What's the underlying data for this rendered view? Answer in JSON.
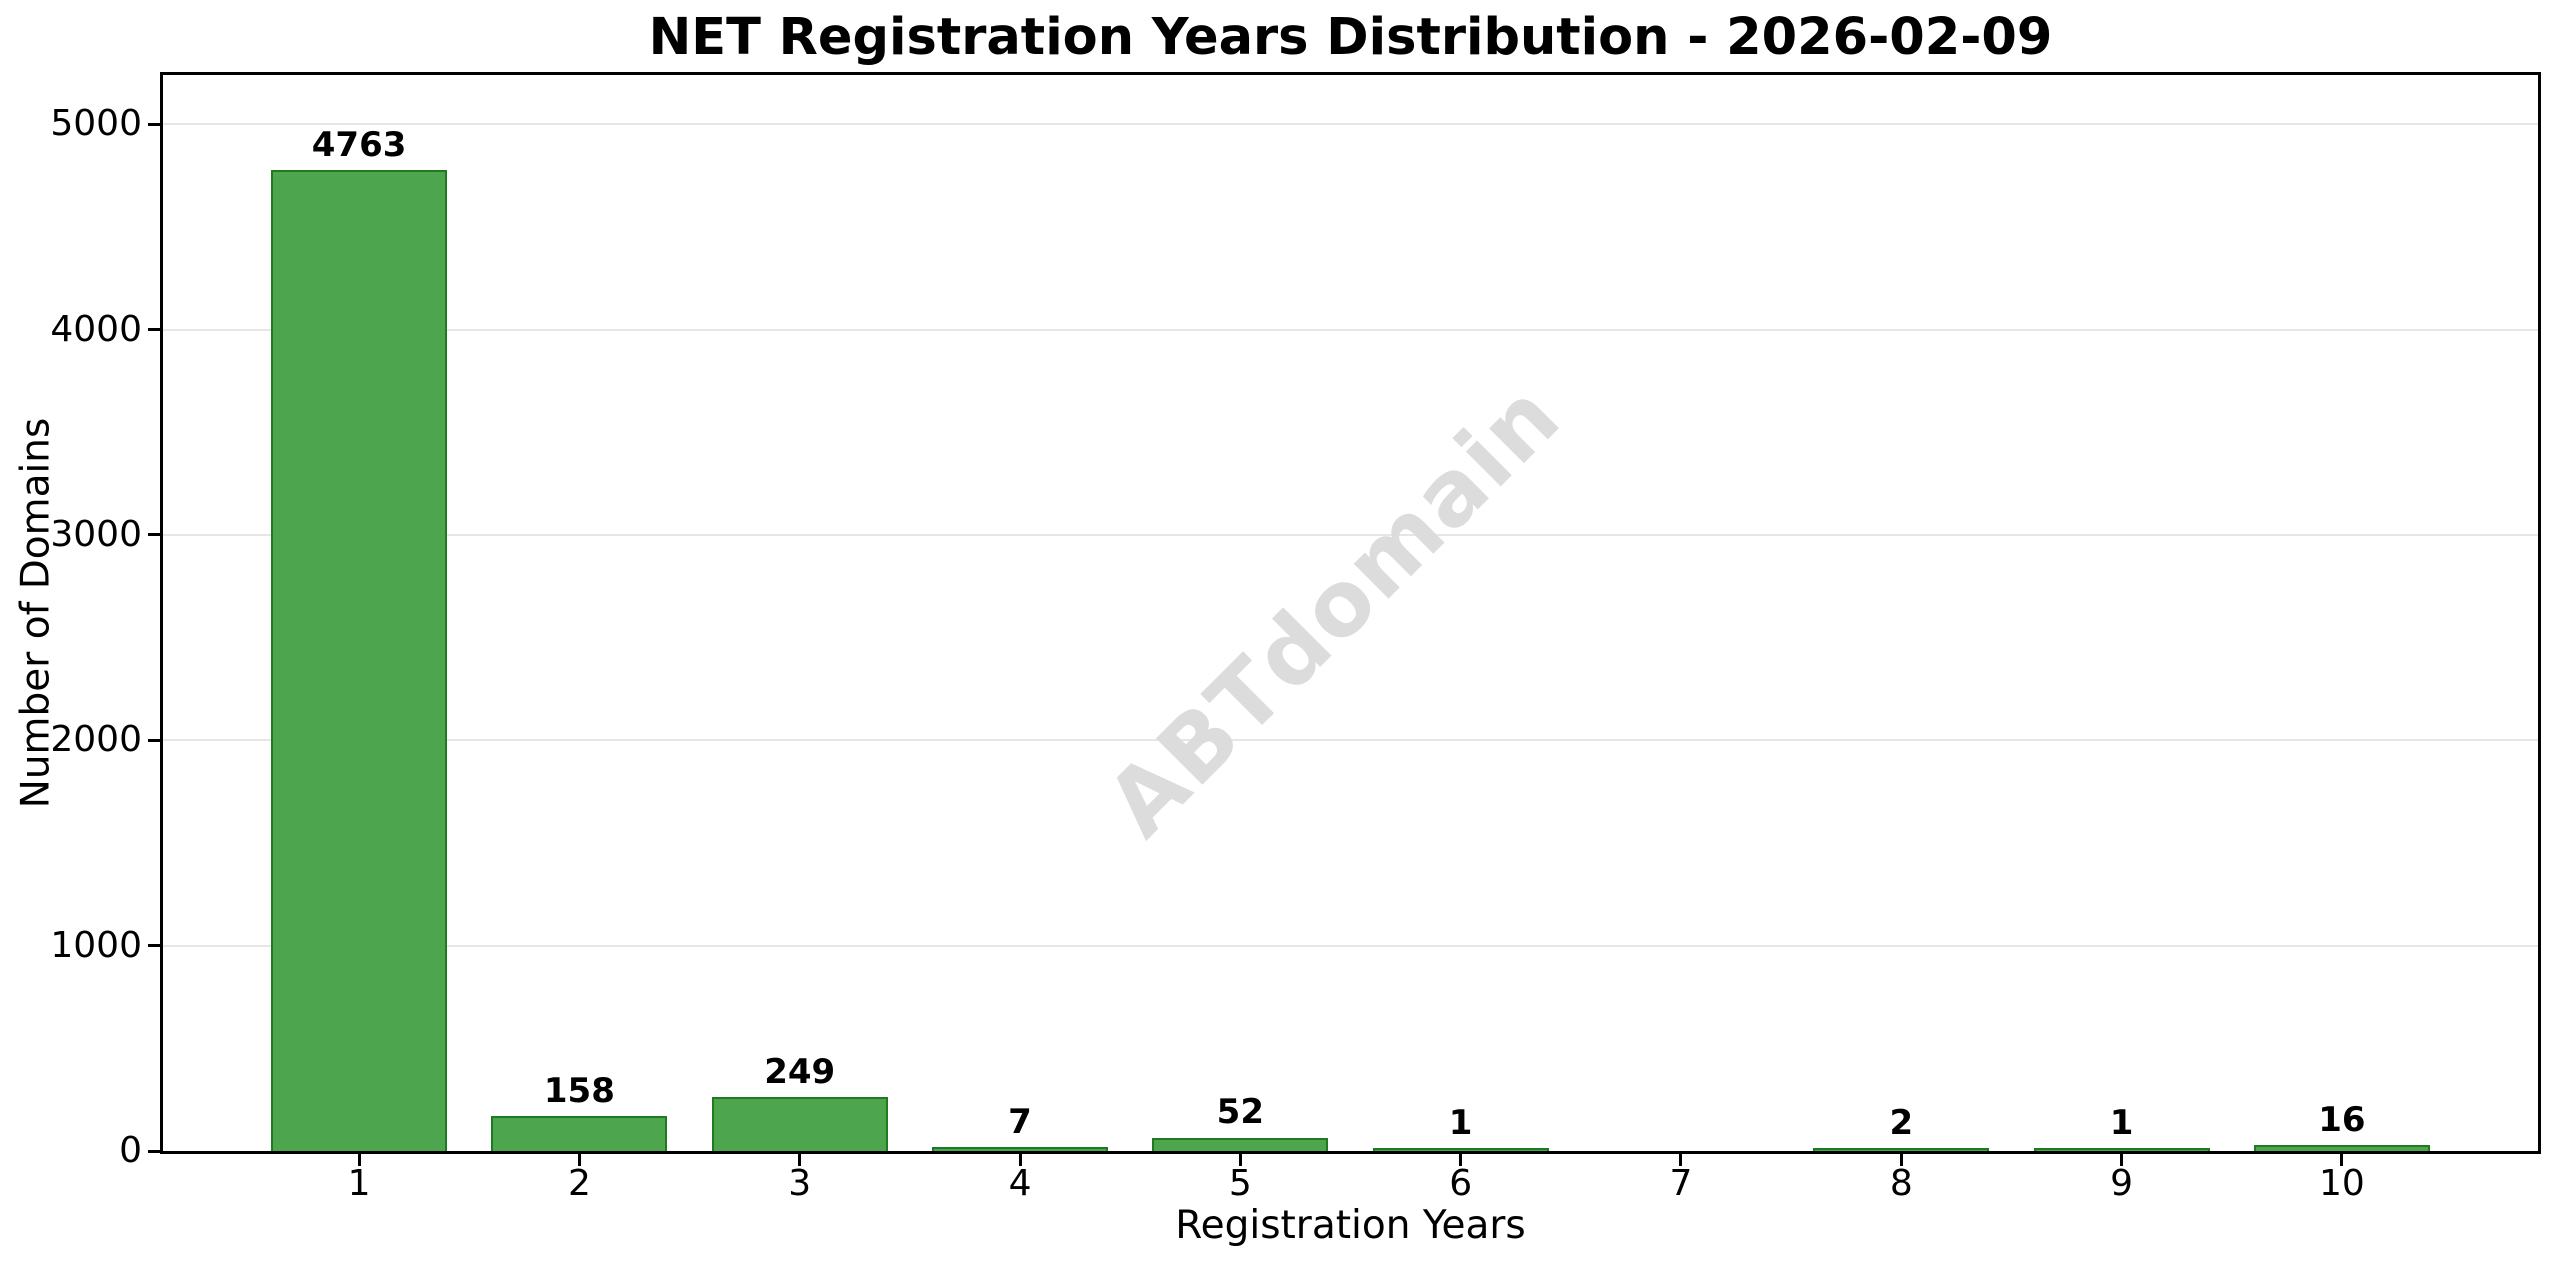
{
  "chart_data": {
    "type": "bar",
    "title": "NET Registration Years Distribution - 2026-02-09",
    "xlabel": "Registration Years",
    "ylabel": "Number of Domains",
    "categories": [
      "1",
      "2",
      "3",
      "4",
      "5",
      "6",
      "7",
      "8",
      "9",
      "10"
    ],
    "values": [
      4763,
      158,
      249,
      7,
      52,
      1,
      0,
      2,
      1,
      16
    ],
    "bar_value_labels": [
      "4763",
      "158",
      "249",
      "7",
      "52",
      "1",
      "",
      "2",
      "1",
      "16"
    ],
    "yticks": [
      0,
      1000,
      2000,
      3000,
      4000,
      5000
    ],
    "ytick_labels": [
      "0",
      "1000",
      "2000",
      "3000",
      "4000",
      "5000"
    ],
    "ylim": [
      0,
      5240
    ],
    "grid": "horizontal",
    "legend": "none",
    "watermark": "ABTdomain",
    "colors": {
      "bar_fill": "#4da64d",
      "bar_edge": "#1e7b21",
      "grid": "#e6e6e6",
      "spine": "#000000",
      "watermark": "#dcdcdc",
      "text": "#000000",
      "background": "#ffffff"
    }
  }
}
